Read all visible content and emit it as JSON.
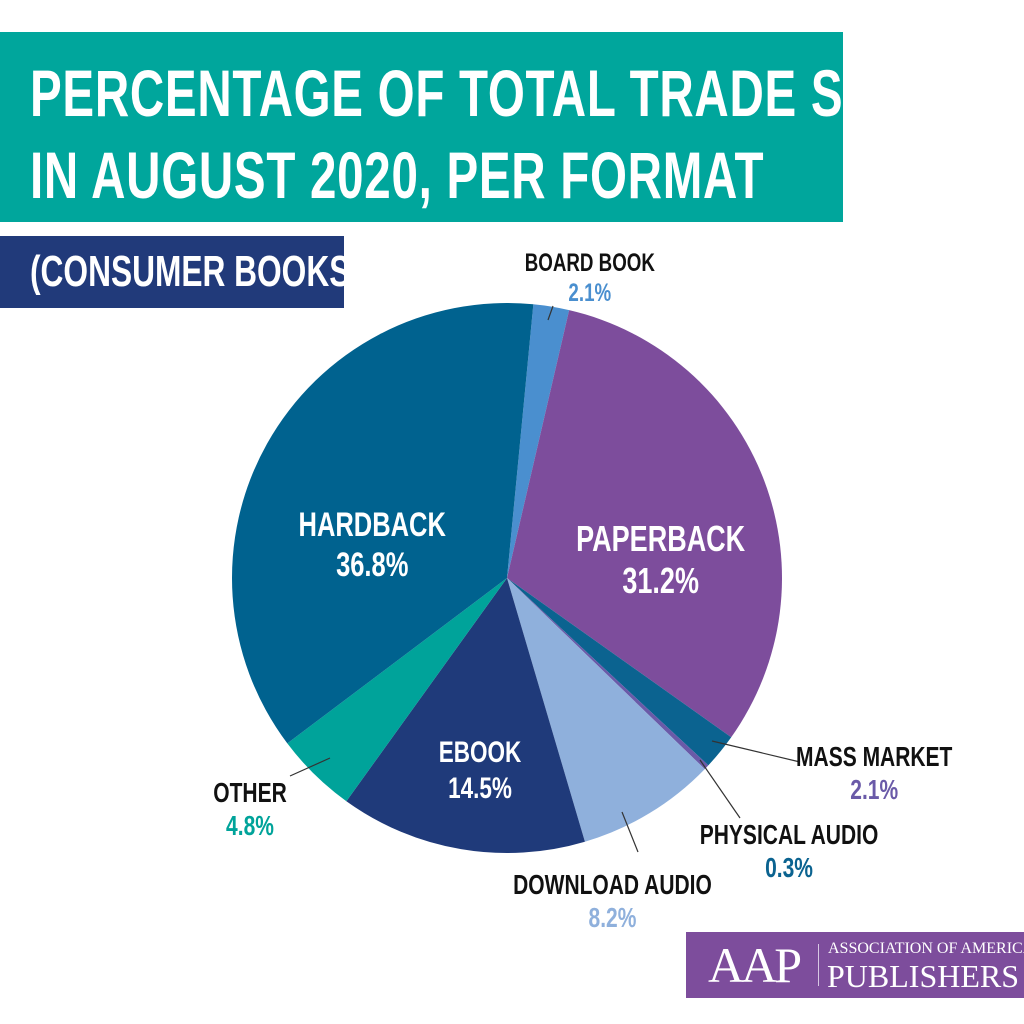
{
  "chart_data": {
    "type": "pie",
    "title_lines": [
      "PERCENTAGE OF TOTAL TRADE SALES",
      "IN AUGUST 2020, PER FORMAT"
    ],
    "subtitle": "(CONSUMER BOOKS)",
    "slices": [
      {
        "label": "BOARD BOOK",
        "value": 2.1,
        "value_text": "2.1%",
        "color": "#4a8fcf",
        "label_color": "#4a8fcf"
      },
      {
        "label": "PAPERBACK",
        "value": 31.2,
        "value_text": "31.2%",
        "color": "#7d4d9c",
        "label_color": "#ffffff"
      },
      {
        "label": "MASS MARKET",
        "value": 2.1,
        "value_text": "2.1%",
        "color": "#0b6390",
        "label_color": "#6a5aa8"
      },
      {
        "label": "PHYSICAL AUDIO",
        "value": 0.3,
        "value_text": "0.3%",
        "color": "#6a5aa8",
        "label_color": "#0b6390"
      },
      {
        "label": "DOWNLOAD AUDIO",
        "value": 8.2,
        "value_text": "8.2%",
        "color": "#8fb0dc",
        "label_color": "#8fb0dc"
      },
      {
        "label": "EBOOK",
        "value": 14.5,
        "value_text": "14.5%",
        "color": "#1f3a7a",
        "label_color": "#ffffff"
      },
      {
        "label": "OTHER",
        "value": 4.8,
        "value_text": "4.8%",
        "color": "#00a39a",
        "label_color": "#00a39a"
      },
      {
        "label": "HARDBACK",
        "value": 36.8,
        "value_text": "36.8%",
        "color": "#00628f",
        "label_color": "#ffffff"
      }
    ],
    "start_angle_deg": 5.5
  },
  "logo": {
    "short": "AAP",
    "line1": "ASSOCIATION OF AMERICAN",
    "line2": "PUBLISHERS"
  }
}
